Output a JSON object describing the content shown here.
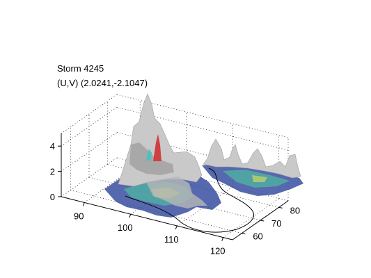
{
  "chart_data": {
    "type": "surface3d",
    "title": [
      "Storm 4245",
      "(U,V) (2.0241,-2.1047)"
    ],
    "xlabel": "",
    "ylabel": "",
    "zlabel": "",
    "x_ticks": [
      90,
      100,
      110,
      120
    ],
    "y_ticks": [
      60,
      70,
      80
    ],
    "z_ticks": [
      0,
      2,
      4
    ],
    "xlim": [
      85,
      122
    ],
    "ylim": [
      55,
      85
    ],
    "zlim": [
      0,
      5
    ],
    "grid": true,
    "colormap": "parula-like blue to green to yellow with gray surface",
    "colors": {
      "surface_gray": "#c9c9c9",
      "surface_shade": "#9a9a9a",
      "base_blue": "#3a4fa0",
      "base_green": "#4fb5a0",
      "base_yellow": "#c8d86a",
      "peak_red": "#d04040",
      "track": "#000000"
    }
  }
}
